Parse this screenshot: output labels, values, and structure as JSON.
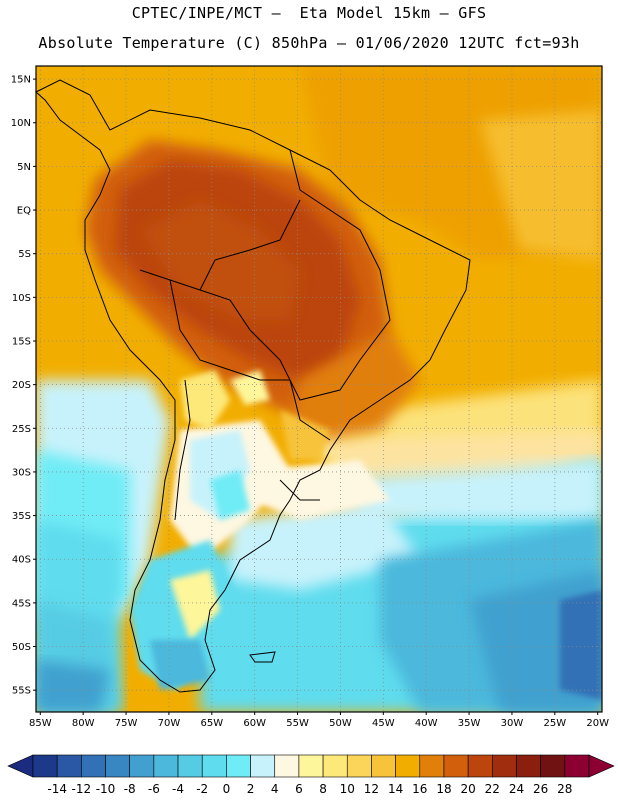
{
  "header": {
    "line1": "CPTEC/INPE/MCT –  Eta Model 15km – GFS",
    "line2": "Absolute Temperature (C) 850hPa – 01/06/2020 12UTC fct=93h"
  },
  "map": {
    "lat_labels": [
      "15N",
      "10N",
      "5N",
      "EQ",
      "5S",
      "10S",
      "15S",
      "20S",
      "25S",
      "30S",
      "35S",
      "40S",
      "45S",
      "50S",
      "55S"
    ],
    "lon_labels": [
      "85W",
      "80W",
      "75W",
      "70W",
      "65W",
      "60W",
      "55W",
      "50W",
      "45W",
      "40W",
      "35W",
      "30W",
      "25W",
      "20W"
    ],
    "lat_values": [
      15,
      10,
      5,
      0,
      -5,
      -10,
      -15,
      -20,
      -25,
      -30,
      -35,
      -40,
      -45,
      -50,
      -55
    ],
    "lon_values": [
      -85,
      -80,
      -75,
      -70,
      -65,
      -60,
      -55,
      -50,
      -45,
      -40,
      -35,
      -30,
      -25,
      -20
    ],
    "extent": {
      "lon_min": -85.5,
      "lon_max": -19.5,
      "lat_min": -57.5,
      "lat_max": 16.5
    },
    "gridlines": "dotted",
    "ocean_color": "#f2ae00"
  },
  "colorbar": {
    "labels": [
      "-14",
      "-12",
      "-10",
      "-8",
      "-6",
      "-4",
      "-2",
      "0",
      "2",
      "4",
      "6",
      "8",
      "10",
      "12",
      "14",
      "16",
      "18",
      "20",
      "22",
      "24",
      "26",
      "28"
    ],
    "colors": [
      "#1d3a8a",
      "#2a58a4",
      "#3271b6",
      "#3987c2",
      "#41a0cf",
      "#4cb8dc",
      "#56cce4",
      "#5fdcee",
      "#70ecf6",
      "#c8f2fb",
      "#fef7e1",
      "#fef69a",
      "#fde87a",
      "#fbd55a",
      "#f7c33b",
      "#f2ae00",
      "#e17f0b",
      "#d25f0c",
      "#bb450d",
      "#a02e0e",
      "#8a1f0e",
      "#701212",
      "#8b0030"
    ],
    "low_end_color": "#1b2b80",
    "high_end_color": "#8b0030"
  }
}
